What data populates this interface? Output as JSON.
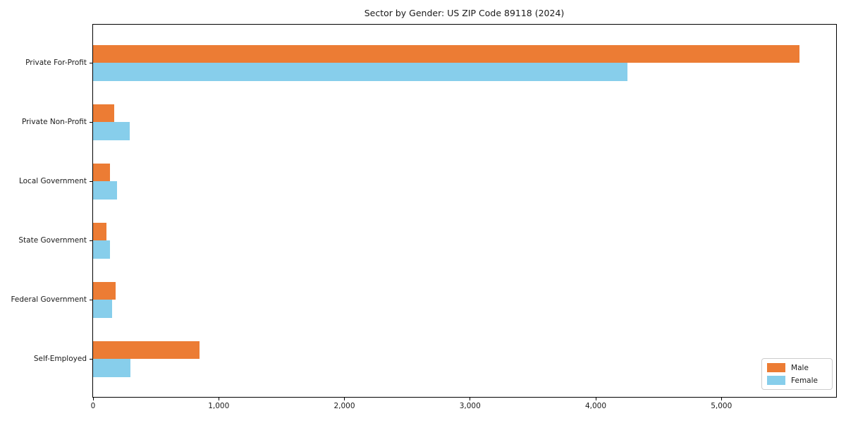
{
  "figure": {
    "background": "#ffffff",
    "axis_color": "#000000",
    "text_color": "#1a1a1a"
  },
  "chart_data": {
    "type": "bar",
    "orientation": "horizontal",
    "title": "Sector by Gender: US ZIP Code 89118 (2024)",
    "xlabel": "",
    "ylabel": "",
    "categories": [
      "Private For-Profit",
      "Private Non-Profit",
      "Local Government",
      "State Government",
      "Federal Government",
      "Self-Employed"
    ],
    "series": [
      {
        "name": "Male",
        "color": "#ec7c34",
        "values": [
          5620,
          168,
          136,
          108,
          179,
          848
        ]
      },
      {
        "name": "Female",
        "color": "#87ceeb",
        "values": [
          4250,
          289,
          188,
          136,
          149,
          299
        ]
      }
    ],
    "xlim": [
      0,
      5913
    ],
    "xticks": [
      0,
      1000,
      2000,
      3000,
      4000,
      5000
    ],
    "xtick_labels": [
      "0",
      "1,000",
      "2,000",
      "3,000",
      "4,000",
      "5,000"
    ],
    "grid": false,
    "legend": {
      "position": "lower right",
      "entries": [
        "Male",
        "Female"
      ]
    }
  }
}
